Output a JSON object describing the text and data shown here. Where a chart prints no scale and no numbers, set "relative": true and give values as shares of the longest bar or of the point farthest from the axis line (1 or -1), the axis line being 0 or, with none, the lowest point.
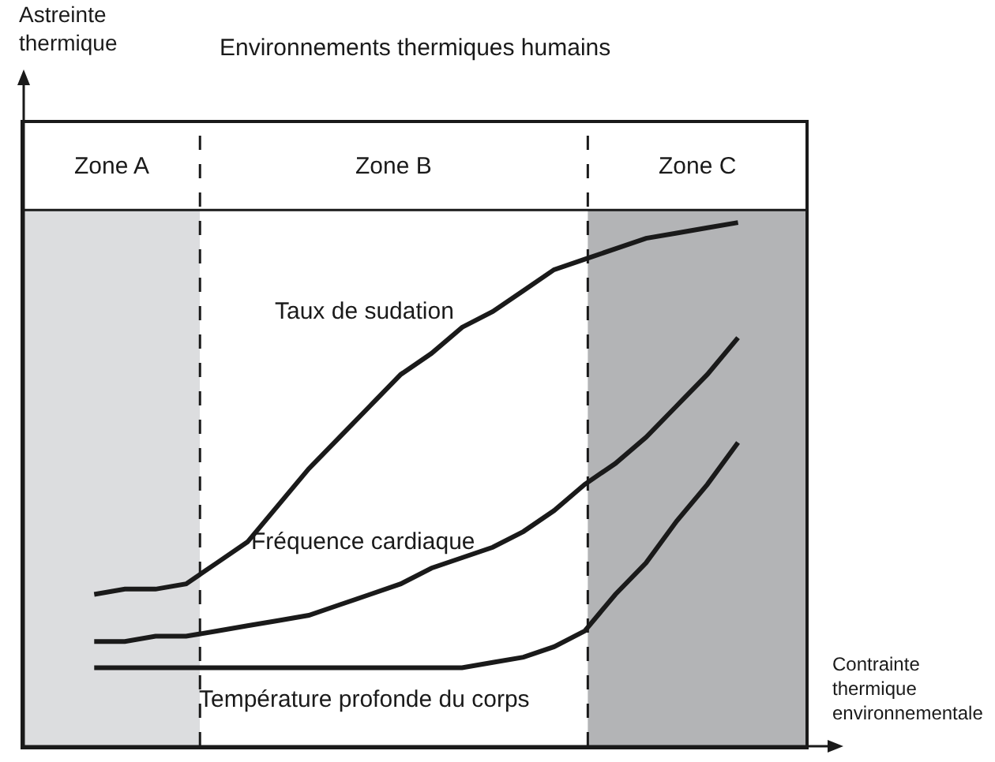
{
  "chart_data": {
    "type": "line",
    "relative": true,
    "title": "Environnements thermiques humains",
    "xlabel": "Contrainte thermique environnementale",
    "annotations": [
      "Astreinte thermique",
      "Zone A",
      "Zone B",
      "Zone C"
    ],
    "categories": [
      null,
      null,
      null,
      null,
      null,
      null,
      null,
      null,
      null,
      null,
      null,
      null,
      null,
      null,
      null,
      null,
      null,
      null,
      null,
      null,
      null,
      null
    ],
    "series": [
      {
        "name": "Taux de sudation",
        "color": "#1a1a1a",
        "values": [
          0.29,
          0.3,
          0.3,
          0.31,
          0.35,
          0.39,
          0.46,
          0.53,
          0.59,
          0.65,
          0.71,
          0.75,
          0.8,
          0.83,
          0.87,
          0.91,
          0.93,
          0.95,
          0.97,
          0.98,
          0.99,
          1
        ]
      },
      {
        "name": "Fréquence cardiaque",
        "color": "#1a1a1a",
        "values": [
          0.2,
          0.2,
          0.21,
          0.21,
          0.22,
          0.23,
          0.24,
          0.25,
          0.27,
          0.29,
          0.31,
          0.34,
          0.36,
          0.38,
          0.41,
          0.45,
          0.5,
          0.54,
          0.59,
          0.65,
          0.71,
          0.78
        ]
      },
      {
        "name": "Température profonde du corps",
        "color": "#1a1a1a",
        "values": [
          0.15,
          0.15,
          0.15,
          0.15,
          0.15,
          0.15,
          0.15,
          0.15,
          0.15,
          0.15,
          0.15,
          0.15,
          0.15,
          0.16,
          0.17,
          0.19,
          0.22,
          0.29,
          0.35,
          0.43,
          0.5,
          0.58
        ]
      }
    ],
    "grid": false,
    "legend": false,
    "marker": "none",
    "line_style": "solid"
  }
}
